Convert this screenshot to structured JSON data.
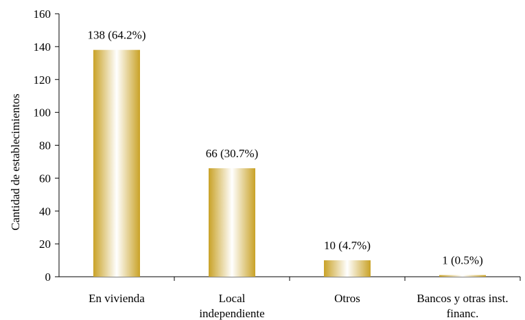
{
  "chart_data": {
    "type": "bar",
    "ylabel": "Cantidad de establecimientos",
    "xlabel": "",
    "ylim": [
      0,
      160
    ],
    "yticks": [
      0,
      20,
      40,
      60,
      80,
      100,
      120,
      140,
      160
    ],
    "categories": [
      [
        "En vivienda"
      ],
      [
        "Local",
        "independiente"
      ],
      [
        "Otros"
      ],
      [
        "Bancos y otras inst.",
        "financ."
      ]
    ],
    "values": [
      138,
      66,
      10,
      1
    ],
    "data_labels": [
      "138 (64.2%)",
      "66 (30.7%)",
      "10 (4.7%)",
      "1 (0.5%)"
    ],
    "grid": false,
    "legend": "none",
    "bar_color_edge": "#c9a227",
    "bar_color_center": "#ffffff"
  }
}
